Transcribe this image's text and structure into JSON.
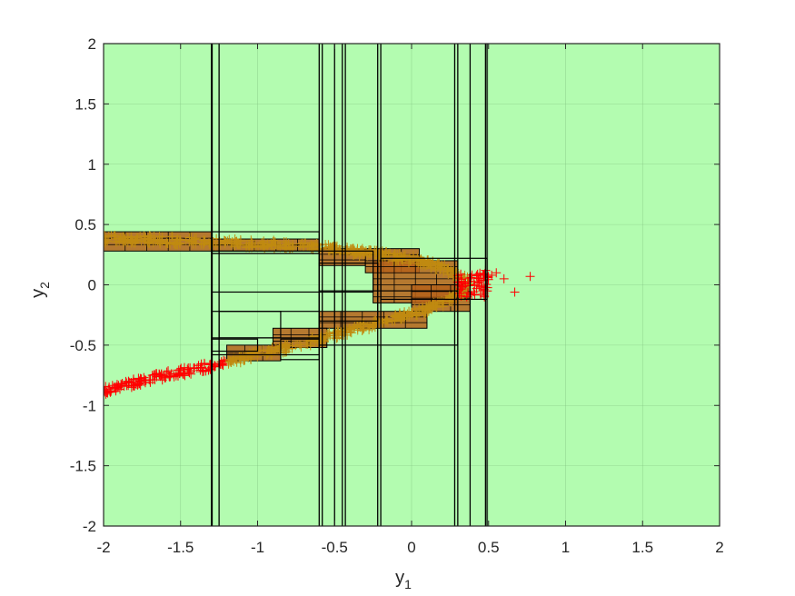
{
  "chart_data": {
    "type": "scatter",
    "title": "",
    "xlabel": {
      "base": "y",
      "sub": "1"
    },
    "ylabel": {
      "base": "y",
      "sub": "2"
    },
    "xlim": [
      -2,
      2
    ],
    "ylim": [
      -2,
      2
    ],
    "xticks": [
      -2,
      -1.5,
      -1,
      -0.5,
      0,
      0.5,
      1,
      1.5,
      2
    ],
    "yticks": [
      -2,
      -1.5,
      -1,
      -0.5,
      0,
      0.5,
      1,
      1.5,
      2
    ],
    "xtick_labels": [
      "-2",
      "-1.5",
      "-1",
      "-0.5",
      "0",
      "0.5",
      "1",
      "1.5",
      "2"
    ],
    "ytick_labels": [
      "-2",
      "-1.5",
      "-1",
      "-0.5",
      "0",
      "0.5",
      "1",
      "1.5",
      "2"
    ],
    "grid": true,
    "legend": "none",
    "colors": {
      "background": "#b3fcb0",
      "box_edge": "#000000",
      "box_fill": "#b5621a",
      "marker_in_boxes": "#c08a10",
      "marker_outside": "#ff0000",
      "grid": "#7fbf7f"
    },
    "marker": "plus",
    "vertical_lines_x": [
      -1.3,
      -1.295,
      -1.25,
      -0.6,
      -0.58,
      -0.5,
      -0.45,
      -0.43,
      -0.22,
      -0.2,
      0.28,
      0.3,
      0.38,
      0.48,
      0.49
    ],
    "outline_boxes": [
      [
        -1.3,
        0.26,
        -0.6,
        0.44
      ],
      [
        -1.3,
        -0.44,
        -0.6,
        0.26
      ],
      [
        -1.3,
        -0.58,
        -0.6,
        -0.22
      ],
      [
        -1.25,
        -0.44,
        -0.85,
        -0.22
      ],
      [
        -1.3,
        -0.06,
        -0.25,
        0.28
      ],
      [
        -0.6,
        -0.3,
        -0.22,
        0.18
      ],
      [
        -0.6,
        -0.5,
        0.3,
        -0.05
      ],
      [
        -0.2,
        -0.12,
        0.49,
        0.22
      ],
      [
        -1.3,
        -0.55,
        -1.0,
        -0.45
      ],
      [
        -0.85,
        -0.62,
        -0.6,
        -0.45
      ]
    ],
    "dense_region_boxes": [
      [
        -2.0,
        0.28,
        -1.3,
        0.44
      ],
      [
        -1.3,
        0.28,
        -0.6,
        0.38
      ],
      [
        -0.6,
        0.16,
        -0.3,
        0.3
      ],
      [
        -0.3,
        0.1,
        0.05,
        0.3
      ],
      [
        -0.25,
        -0.15,
        0.3,
        0.2
      ],
      [
        0.0,
        -0.22,
        0.38,
        0.0
      ],
      [
        -0.6,
        -0.36,
        0.1,
        -0.22
      ],
      [
        -0.9,
        -0.52,
        -0.55,
        -0.36
      ],
      [
        -1.2,
        -0.63,
        -0.85,
        -0.5
      ]
    ],
    "branch_upper_x": [
      -2.0,
      -1.8,
      -1.6,
      -1.4,
      -1.2,
      -1.0,
      -0.8,
      -0.6,
      -0.4,
      -0.2,
      0.0,
      0.1,
      0.2,
      0.3,
      0.38
    ],
    "branch_upper_y": [
      0.38,
      0.38,
      0.37,
      0.36,
      0.35,
      0.34,
      0.33,
      0.31,
      0.28,
      0.25,
      0.21,
      0.18,
      0.14,
      0.08,
      0.02
    ],
    "branch_lower_x": [
      -2.0,
      -1.8,
      -1.6,
      -1.4,
      -1.2,
      -1.0,
      -0.8,
      -0.6,
      -0.4,
      -0.2,
      0.0,
      0.1,
      0.2,
      0.3,
      0.38
    ],
    "branch_lower_y": [
      -0.88,
      -0.81,
      -0.75,
      -0.7,
      -0.64,
      -0.58,
      -0.52,
      -0.45,
      -0.38,
      -0.31,
      -0.24,
      -0.2,
      -0.15,
      -0.09,
      -0.03
    ],
    "outside_points_x": [
      0.45,
      0.48,
      0.52,
      0.55,
      0.6,
      0.67,
      0.77
    ],
    "outside_points_y": [
      -0.02,
      0.12,
      0.08,
      0.1,
      0.05,
      -0.06,
      0.07
    ]
  }
}
